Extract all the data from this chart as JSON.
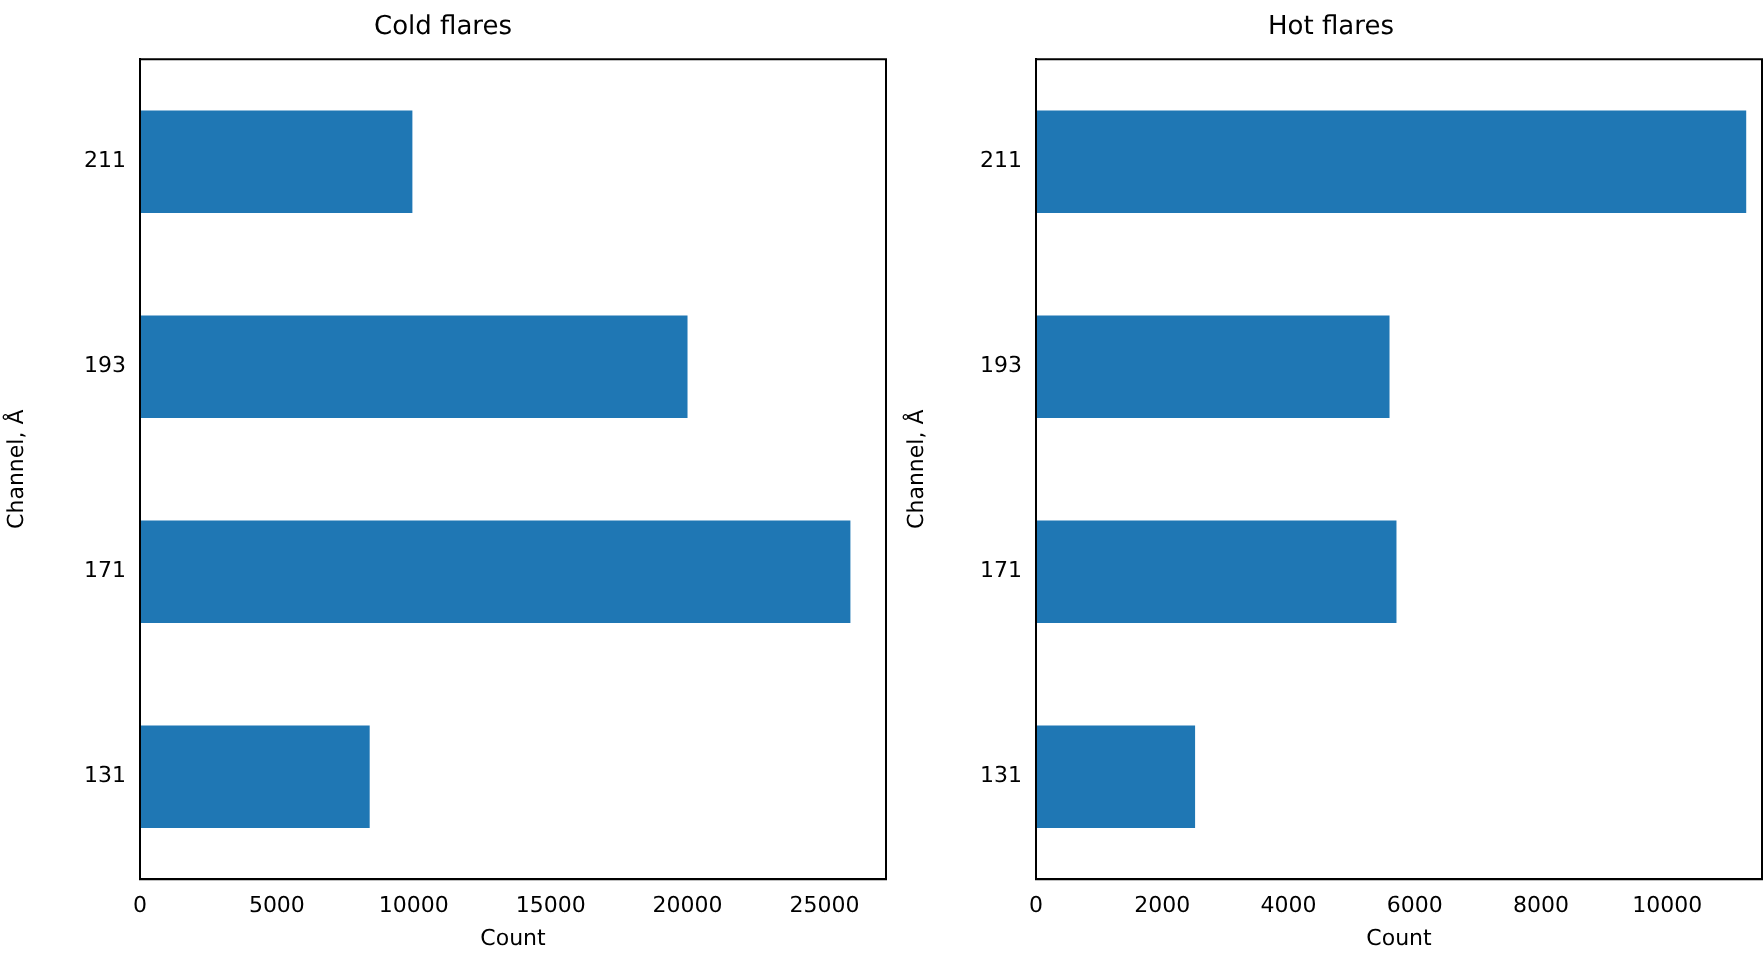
{
  "chart_data": [
    {
      "type": "bar",
      "orientation": "horizontal",
      "title": "Cold flares",
      "xlabel": "Count",
      "ylabel": "Channel, Å",
      "categories": [
        "211",
        "193",
        "171",
        "131"
      ],
      "values": [
        9950,
        20000,
        25950,
        8390
      ],
      "color": "#1f77b4",
      "xlim": [
        0,
        27250
      ],
      "xticks": [
        0,
        5000,
        10000,
        15000,
        20000,
        25000
      ],
      "grid": false
    },
    {
      "type": "bar",
      "orientation": "horizontal",
      "title": "Hot flares",
      "xlabel": "Count",
      "ylabel": "Channel, Å",
      "categories": [
        "211",
        "193",
        "171",
        "131"
      ],
      "values": [
        11250,
        5600,
        5710,
        2520
      ],
      "color": "#1f77b4",
      "xlim": [
        0,
        11500
      ],
      "xticks": [
        0,
        2000,
        4000,
        6000,
        8000,
        10000
      ],
      "grid": false
    }
  ]
}
